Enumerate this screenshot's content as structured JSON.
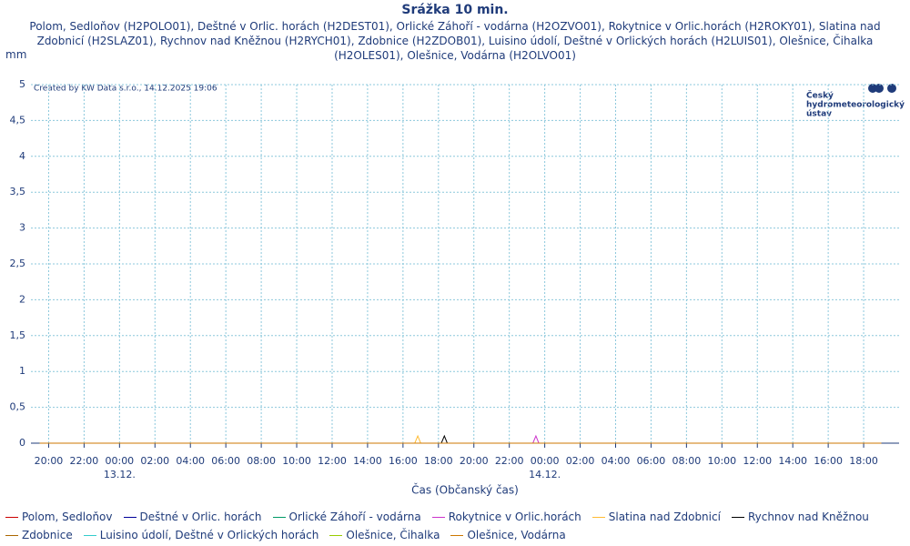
{
  "chart_data": {
    "type": "line",
    "title": "Srážka 10 min.",
    "subtitle": "Polom, Sedloňov (H2POLO01), Deštné v Orlic. horách (H2DEST01), Orlické Záhoří - vodárna (H2OZVO01), Rokytnice v Orlic.horách (H2ROKY01), Slatina nad Zdobnicí (H2SLAZ01), Rychnov nad Kněžnou (H2RYCH01), Zdobnice (H2ZDOB01), Luisino údolí, Deštné v Orlických horách (H2LUIS01), Olešnice, Čihalka (H2OLES01), Olešnice, Vodárna (H2OLVO01)",
    "y_label": "mm",
    "x_label": "Čas (Občanský čas)",
    "credit": "Created by KW Data s.r.o., 14.12.2025 19:06",
    "logo": [
      "Český",
      "hydrometeorologický",
      "ústav"
    ],
    "grid": true,
    "xlim": [
      "12.12. 19:00",
      "14.12. 20:00"
    ],
    "ylim": [
      0,
      5
    ],
    "yticks": [
      0,
      {
        "value": 0.5,
        "label": "0,5"
      },
      1,
      {
        "value": 1.5,
        "label": "1,5"
      },
      2,
      {
        "value": 2.5,
        "label": "2,5"
      },
      3,
      {
        "value": 3.5,
        "label": "3,5"
      },
      4,
      {
        "value": 4.5,
        "label": "4,5"
      },
      5
    ],
    "xticks": [
      {
        "value": "12.12. 20:00",
        "label": "20:00"
      },
      {
        "value": "12.12. 22:00",
        "label": "22:00"
      },
      {
        "value": "13.12. 00:00",
        "label": "00:00"
      },
      {
        "value": "13.12. 02:00",
        "label": "02:00"
      },
      {
        "value": "13.12. 04:00",
        "label": "04:00"
      },
      {
        "value": "13.12. 06:00",
        "label": "06:00"
      },
      {
        "value": "13.12. 08:00",
        "label": "08:00"
      },
      {
        "value": "13.12. 10:00",
        "label": "10:00"
      },
      {
        "value": "13.12. 12:00",
        "label": "12:00"
      },
      {
        "value": "13.12. 14:00",
        "label": "14:00"
      },
      {
        "value": "13.12. 16:00",
        "label": "16:00"
      },
      {
        "value": "13.12. 18:00",
        "label": "18:00"
      },
      {
        "value": "13.12. 20:00",
        "label": "20:00"
      },
      {
        "value": "13.12. 22:00",
        "label": "22:00"
      },
      {
        "value": "14.12. 00:00",
        "label": "00:00"
      },
      {
        "value": "14.12. 02:00",
        "label": "02:00"
      },
      {
        "value": "14.12. 04:00",
        "label": "04:00"
      },
      {
        "value": "14.12. 06:00",
        "label": "06:00"
      },
      {
        "value": "14.12. 08:00",
        "label": "08:00"
      },
      {
        "value": "14.12. 10:00",
        "label": "10:00"
      },
      {
        "value": "14.12. 12:00",
        "label": "12:00"
      },
      {
        "value": "14.12. 14:00",
        "label": "14:00"
      },
      {
        "value": "14.12. 16:00",
        "label": "16:00"
      },
      {
        "value": "14.12. 18:00",
        "label": "18:00"
      }
    ],
    "day_labels": [
      {
        "value": "13.12. 00:00",
        "label": "13.12."
      },
      {
        "value": "14.12. 00:00",
        "label": "14.12."
      }
    ],
    "series": [
      {
        "name": "Polom, Sedloňov",
        "color": "#cc0000",
        "x": [
          "12.12. 19:30",
          "14.12. 19:00"
        ],
        "values": [
          0,
          0
        ]
      },
      {
        "name": "Deštné v Orlic. horách",
        "color": "#000099",
        "x": [
          "12.12. 19:30",
          "14.12. 19:00"
        ],
        "values": [
          0,
          0
        ]
      },
      {
        "name": "Orlické Záhoří - vodárna",
        "color": "#009966",
        "x": [
          "12.12. 19:30",
          "14.12. 19:00"
        ],
        "values": [
          0,
          0
        ]
      },
      {
        "name": "Rokytnice v Orlic.horách",
        "color": "#cc33cc",
        "x": [
          "12.12. 19:30",
          "13.12. 23:20",
          "13.12. 23:30",
          "13.12. 23:40",
          "14.12. 19:00"
        ],
        "values": [
          0,
          0,
          0.1,
          0,
          0
        ]
      },
      {
        "name": "Slatina nad Zdobnicí",
        "color": "#ffbb33",
        "x": [
          "12.12. 19:30",
          "13.12. 16:40",
          "13.12. 16:50",
          "13.12. 17:00",
          "14.12. 19:00"
        ],
        "values": [
          0,
          0,
          0.1,
          0,
          0
        ]
      },
      {
        "name": "Rychnov nad Kněžnou",
        "color": "#000000",
        "x": [
          "12.12. 19:30",
          "13.12. 18:10",
          "13.12. 18:20",
          "13.12. 18:30",
          "14.12. 19:00"
        ],
        "values": [
          0,
          0,
          0.1,
          0,
          0
        ]
      },
      {
        "name": "Zdobnice",
        "color": "#aa6600",
        "x": [
          "12.12. 19:30",
          "14.12. 19:00"
        ],
        "values": [
          0,
          0
        ]
      },
      {
        "name": "Luisino údolí, Deštné v Orlických horách",
        "color": "#33cccc",
        "x": [
          "12.12. 19:30",
          "14.12. 19:00"
        ],
        "values": [
          0,
          0
        ]
      },
      {
        "name": "Olešnice, Čihalka",
        "color": "#99cc00",
        "x": [
          "12.12. 19:30",
          "14.12. 19:00"
        ],
        "values": [
          0,
          0
        ]
      },
      {
        "name": "Olešnice, Vodárna",
        "color": "#cc7700",
        "x": [
          "12.12. 19:30",
          "14.12. 19:00"
        ],
        "values": [
          0,
          0
        ]
      }
    ]
  }
}
